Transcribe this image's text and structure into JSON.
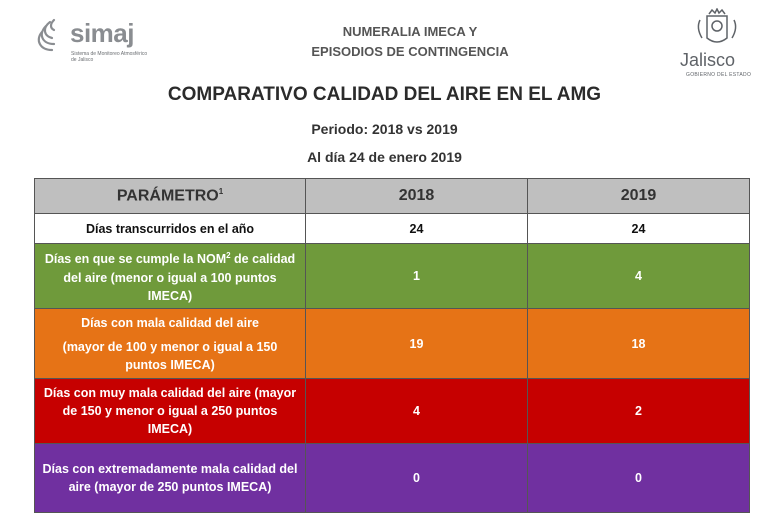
{
  "header": {
    "simaj_logo_name": "simaj",
    "simaj_logo_subtitle": "Sistema de Monitoreo Atmosférico de Jalisco",
    "line1": "NUMERALIA IMECA Y",
    "line2": "EPISODIOS DE CONTINGENCIA",
    "jalisco_logo_name": "Jalisco",
    "jalisco_logo_subtitle": "GOBIERNO DEL ESTADO"
  },
  "title": "COMPARATIVO CALIDAD DEL AIRE EN EL AMG",
  "period": "Periodo: 2018 vs 2019",
  "date": "Al día 24 de enero 2019",
  "table": {
    "header_param": "PARÁMETRO",
    "header_param_sup": "1",
    "header_2018": "2018",
    "header_2019": "2019",
    "rows": [
      {
        "label": "Días transcurridos en el año",
        "v2018": "24",
        "v2019": "24"
      },
      {
        "label_a": "Días en que se cumple la NOM",
        "label_sup": "2",
        "label_b": " de calidad del aire (menor o igual a 100 puntos IMECA)",
        "v2018": "1",
        "v2019": "4"
      },
      {
        "label_a": "Días con mala calidad del aire",
        "label_b": "(mayor de 100 y menor o igual a 150 puntos IMECA)",
        "v2018": "19",
        "v2019": "18"
      },
      {
        "label": "Días con muy mala calidad del aire (mayor de 150 y menor o igual a 250 puntos IMECA)",
        "v2018": "4",
        "v2019": "2"
      },
      {
        "label": "Días con extremadamente mala calidad del aire (mayor de 250 puntos IMECA)",
        "v2018": "0",
        "v2019": "0"
      }
    ]
  },
  "colors": {
    "green": "#6f9a3b",
    "orange": "#e67316",
    "red": "#c60000",
    "purple": "#7030a0",
    "header_gray": "#bfbfbf"
  }
}
